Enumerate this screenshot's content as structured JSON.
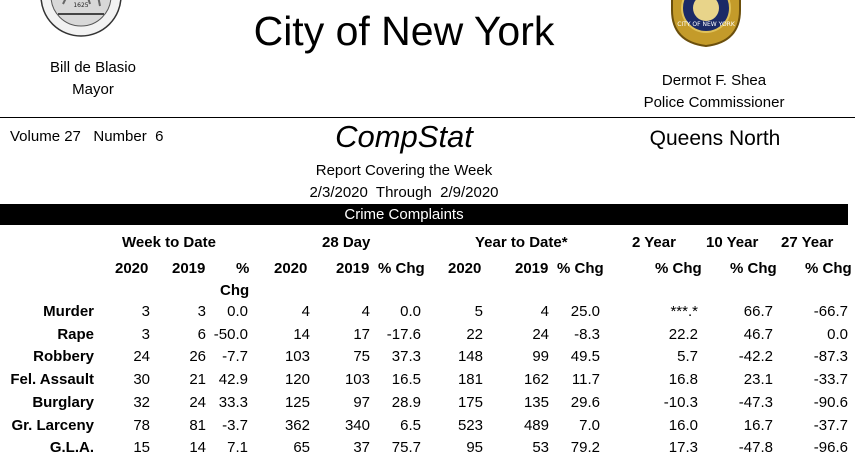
{
  "header": {
    "seal_left_text": "1625",
    "title": "City of New York",
    "mayor_name": "Bill de Blasio",
    "mayor_title": "Mayor",
    "badge_text": "CITY OF NEW YORK",
    "commissioner_name": "Dermot F. Shea",
    "commissioner_title": "Police Commissioner"
  },
  "report": {
    "volume": "Volume 27   Number  6",
    "name": "CompStat",
    "region": "Queens North",
    "covering": "Report Covering the Week",
    "date_range": "2/3/2020  Through  2/9/2020"
  },
  "section_title": "Crime Complaints",
  "group_headers": {
    "week_to_date": "Week to Date",
    "day28": "28 Day",
    "year_to_date": "Year to Date*",
    "two_year": "2 Year",
    "ten_year": "10 Year",
    "twentyseven_year": "27 Year"
  },
  "column_headers": {
    "y2020": "2020",
    "y2019": "2019",
    "pct_top": "%",
    "pct_bottom": "Chg",
    "pct_chg": "% Chg"
  },
  "rows": [
    {
      "label": "Murder",
      "w20": "3",
      "w19": "3",
      "wp": "0.0",
      "d20": "4",
      "d19": "4",
      "dp": "0.0",
      "y20": "5",
      "y19": "4",
      "yp": "25.0",
      "p2": "***.*",
      "p10": "66.7",
      "p27": "-66.7"
    },
    {
      "label": "Rape",
      "w20": "3",
      "w19": "6",
      "wp": "-50.0",
      "d20": "14",
      "d19": "17",
      "dp": "-17.6",
      "y20": "22",
      "y19": "24",
      "yp": "-8.3",
      "p2": "22.2",
      "p10": "46.7",
      "p27": "0.0"
    },
    {
      "label": "Robbery",
      "w20": "24",
      "w19": "26",
      "wp": "-7.7",
      "d20": "103",
      "d19": "75",
      "dp": "37.3",
      "y20": "148",
      "y19": "99",
      "yp": "49.5",
      "p2": "5.7",
      "p10": "-42.2",
      "p27": "-87.3"
    },
    {
      "label": "Fel. Assault",
      "w20": "30",
      "w19": "21",
      "wp": "42.9",
      "d20": "120",
      "d19": "103",
      "dp": "16.5",
      "y20": "181",
      "y19": "162",
      "yp": "11.7",
      "p2": "16.8",
      "p10": "23.1",
      "p27": "-33.7"
    },
    {
      "label": "Burglary",
      "w20": "32",
      "w19": "24",
      "wp": "33.3",
      "d20": "125",
      "d19": "97",
      "dp": "28.9",
      "y20": "175",
      "y19": "135",
      "yp": "29.6",
      "p2": "-10.3",
      "p10": "-47.3",
      "p27": "-90.6"
    },
    {
      "label": "Gr. Larceny",
      "w20": "78",
      "w19": "81",
      "wp": "-3.7",
      "d20": "362",
      "d19": "340",
      "dp": "6.5",
      "y20": "523",
      "y19": "489",
      "yp": "7.0",
      "p2": "16.0",
      "p10": "16.7",
      "p27": "-37.7"
    },
    {
      "label": "G.L.A.",
      "w20": "15",
      "w19": "14",
      "wp": "7.1",
      "d20": "65",
      "d19": "37",
      "dp": "75.7",
      "y20": "95",
      "y19": "53",
      "yp": "79.2",
      "p2": "17.3",
      "p10": "-47.8",
      "p27": "-96.6"
    }
  ]
}
